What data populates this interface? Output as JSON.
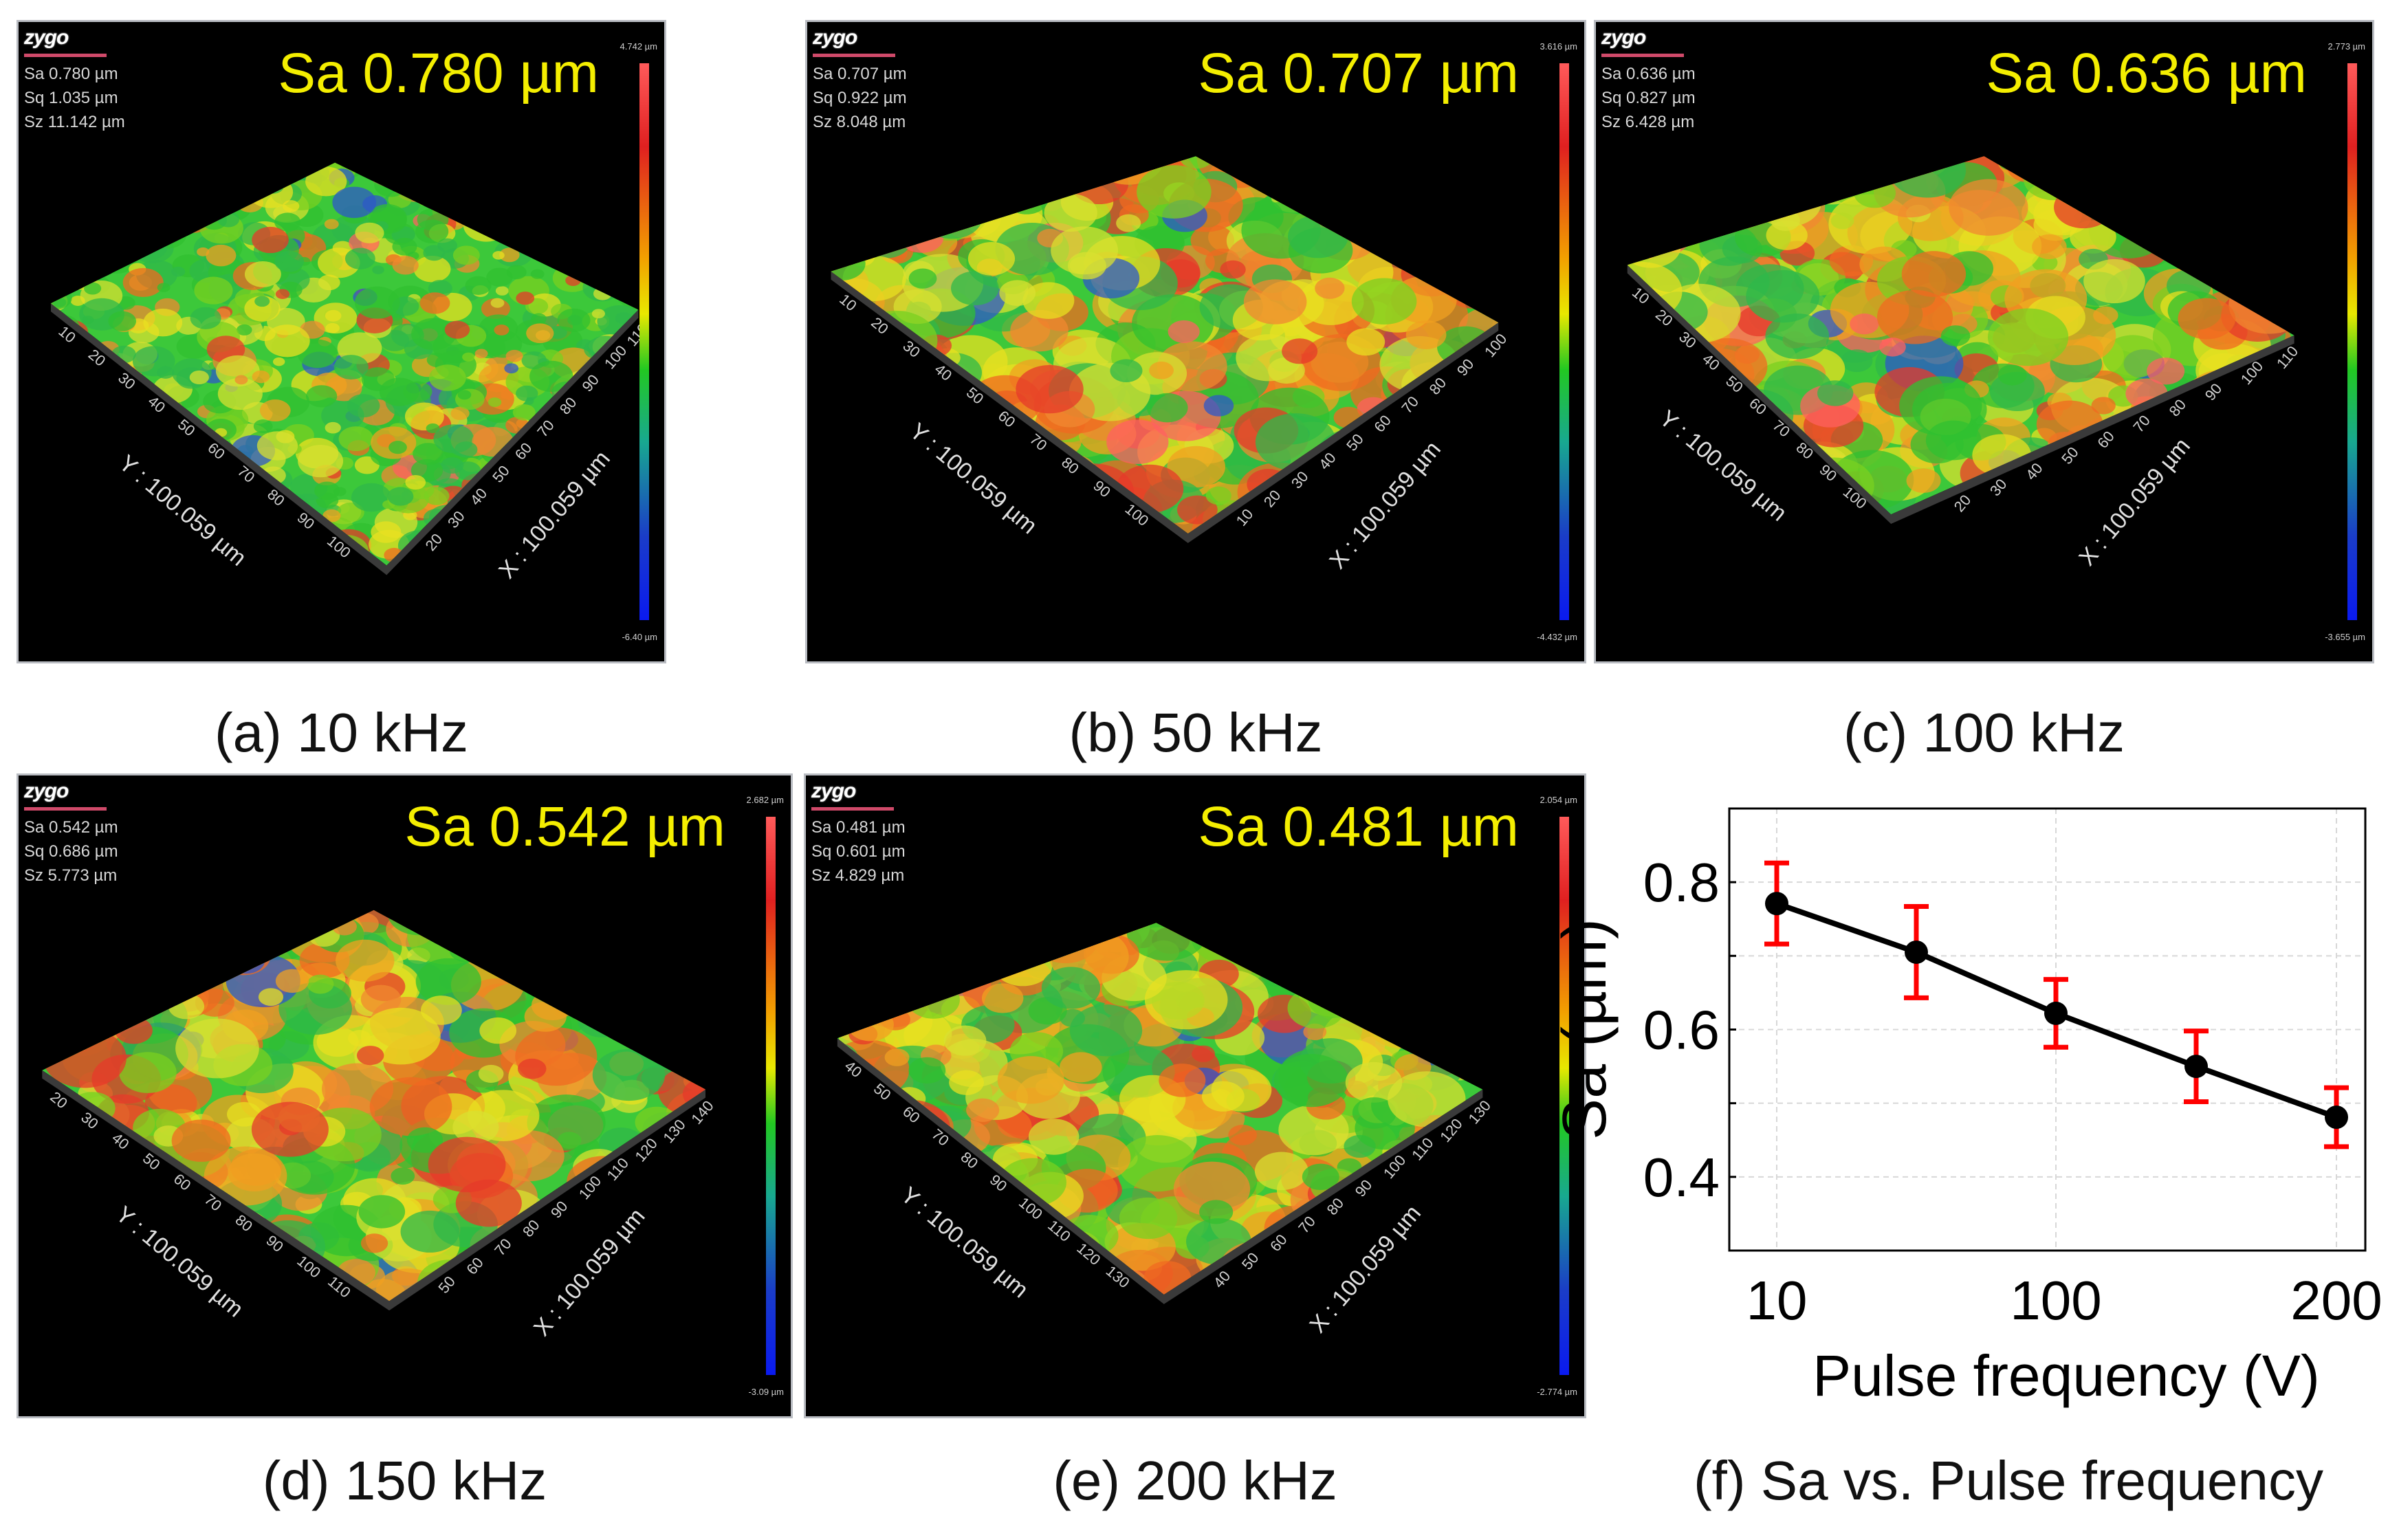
{
  "panels": [
    {
      "id": "a",
      "caption": "(a) 10 kHz",
      "sa_big": "Sa 0.780 µm",
      "logo": "zygo",
      "stats": [
        "Sa 0.780  µm",
        "Sq 1.035  µm",
        "Sz 11.142 µm"
      ],
      "cbar_max": "4.742 µm",
      "cbar_min": "-6.40 µm",
      "y_axis": "Y : 100.059 µm",
      "x_axis": "X : 100.059 µm",
      "y_ticks": [
        "10",
        "20",
        "30",
        "40",
        "50",
        "60",
        "70",
        "80",
        "90",
        "100"
      ],
      "x_ticks": [
        "20",
        "30",
        "40",
        "50",
        "60",
        "70",
        "80",
        "90",
        "100",
        "110"
      ]
    },
    {
      "id": "b",
      "caption": "(b) 50 kHz",
      "sa_big": "Sa 0.707 µm",
      "logo": "zygo",
      "stats": [
        "Sa 0.707 µm",
        "Sq 0.922 µm",
        "Sz 8.048 µm"
      ],
      "cbar_max": "3.616 µm",
      "cbar_min": "-4.432 µm",
      "y_axis": "Y : 100.059 µm",
      "x_axis": "X : 100.059 µm",
      "y_ticks": [
        "10",
        "20",
        "30",
        "40",
        "50",
        "60",
        "70",
        "80",
        "90",
        "100"
      ],
      "x_ticks": [
        "10",
        "20",
        "30",
        "40",
        "50",
        "60",
        "70",
        "80",
        "90",
        "100"
      ]
    },
    {
      "id": "c",
      "caption": "(c) 100 kHz",
      "sa_big": "Sa 0.636 µm",
      "logo": "zygo",
      "stats": [
        "Sa 0.636 µm",
        "Sq 0.827 µm",
        "Sz 6.428 µm"
      ],
      "cbar_max": "2.773 µm",
      "cbar_min": "-3.655 µm",
      "y_axis": "Y : 100.059 µm",
      "x_axis": "X : 100.059 µm",
      "y_ticks": [
        "10",
        "20",
        "30",
        "40",
        "50",
        "60",
        "70",
        "80",
        "90",
        "100"
      ],
      "x_ticks": [
        "20",
        "30",
        "40",
        "50",
        "60",
        "70",
        "80",
        "90",
        "100",
        "110"
      ]
    },
    {
      "id": "d",
      "caption": "(d) 150 kHz",
      "sa_big": "Sa 0.542 µm",
      "logo": "zygo",
      "stats": [
        "Sa 0.542 µm",
        "Sq 0.686 µm",
        "Sz 5.773 µm"
      ],
      "cbar_max": "2.682 µm",
      "cbar_min": "-3.09 µm",
      "y_axis": "Y : 100.059 µm",
      "x_axis": "X : 100.059 µm",
      "y_ticks": [
        "20",
        "30",
        "40",
        "50",
        "60",
        "70",
        "80",
        "90",
        "100",
        "110"
      ],
      "x_ticks": [
        "50",
        "60",
        "70",
        "80",
        "90",
        "100",
        "110",
        "120",
        "130",
        "140"
      ]
    },
    {
      "id": "e",
      "caption": "(e) 200 kHz",
      "sa_big": "Sa 0.481 µm",
      "logo": "zygo",
      "stats": [
        "Sa 0.481 µm",
        "Sq 0.601 µm",
        "Sz 4.829 µm"
      ],
      "cbar_max": "2.054 µm",
      "cbar_min": "-2.774 µm",
      "y_axis": "Y : 100.059 µm",
      "x_axis": "X : 100.059 µm",
      "y_ticks": [
        "40",
        "50",
        "60",
        "70",
        "80",
        "90",
        "100",
        "110",
        "120",
        "130"
      ],
      "x_ticks": [
        "40",
        "50",
        "60",
        "70",
        "80",
        "90",
        "100",
        "110",
        "120",
        "130"
      ]
    }
  ],
  "colors": {
    "sa_text": "#f4ee00",
    "error_bar": "#ff0000",
    "line": "#000000",
    "marker": "#000000"
  },
  "chart_data": {
    "type": "line",
    "caption": "(f) Sa vs. Pulse frequency",
    "title": "",
    "xlabel": "Pulse frequency (V)",
    "ylabel": "Sa (µm)",
    "categories": [
      "10",
      "50",
      "100",
      "150",
      "200"
    ],
    "x_tick_labels": [
      "10",
      "100",
      "200"
    ],
    "series": [
      {
        "name": "Sa",
        "values": [
          0.771,
          0.705,
          0.622,
          0.55,
          0.481
        ],
        "error": [
          0.055,
          0.062,
          0.046,
          0.048,
          0.04
        ]
      }
    ],
    "ylim": [
      0.3,
      0.9
    ],
    "y_ticks": [
      "0.4",
      "0.6",
      "0.8"
    ],
    "grid": true
  }
}
